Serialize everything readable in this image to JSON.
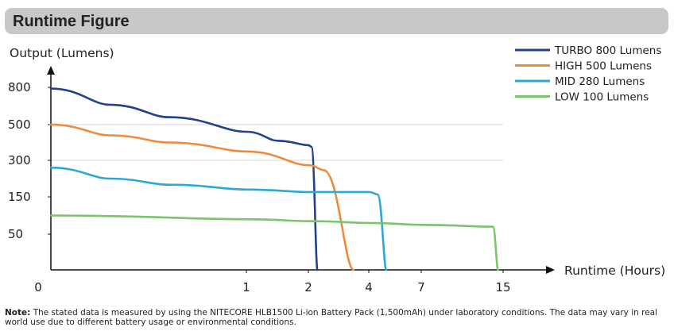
{
  "header": {
    "title": "Runtime Figure"
  },
  "note": {
    "label": "Note:",
    "text": "The stated data is measured by using the NITECORE HLB1500 Li-ion Battery Pack (1,500mAh) under laboratory conditions. The data may vary in real world use due to different battery usage or environmental conditions."
  },
  "chart_data": {
    "type": "line",
    "title": "Runtime Figure",
    "ylabel": "Output (Lumens)",
    "xlabel": "Runtime (Hours)",
    "y_ticks": [
      {
        "value": 800,
        "label": "800"
      },
      {
        "value": 500,
        "label": "500"
      },
      {
        "value": 300,
        "label": "300"
      },
      {
        "value": 150,
        "label": "150"
      },
      {
        "value": 50,
        "label": "50"
      }
    ],
    "x_ticks": [
      {
        "value": 0,
        "label": "0"
      },
      {
        "value": 1,
        "label": "1"
      },
      {
        "value": 2,
        "label": "2"
      },
      {
        "value": 4,
        "label": "4"
      },
      {
        "value": 7,
        "label": "7"
      },
      {
        "value": 15,
        "label": "15"
      }
    ],
    "x_scale": "nonlinear (tick labels not evenly spaced)",
    "gridlines_at": [
      500,
      300
    ],
    "legend_position": "top-right",
    "series": [
      {
        "name": "TURBO 800 Lumens",
        "color": "#23408e",
        "points": [
          [
            0,
            790
          ],
          [
            0.3,
            660
          ],
          [
            0.6,
            560
          ],
          [
            1,
            460
          ],
          [
            1.5,
            410
          ],
          [
            2,
            385
          ],
          [
            2.1,
            375
          ],
          [
            2.3,
            0
          ]
        ]
      },
      {
        "name": "HIGH 500 Lumens",
        "color": "#ef8a3c",
        "points": [
          [
            0,
            500
          ],
          [
            0.3,
            440
          ],
          [
            0.6,
            400
          ],
          [
            1,
            350
          ],
          [
            2,
            280
          ],
          [
            2.5,
            260
          ],
          [
            3.5,
            0
          ]
        ]
      },
      {
        "name": "MID 280 Lumens",
        "color": "#2ba8d5",
        "points": [
          [
            0,
            270
          ],
          [
            0.3,
            225
          ],
          [
            0.6,
            200
          ],
          [
            1,
            180
          ],
          [
            2,
            170
          ],
          [
            4,
            170
          ],
          [
            4.5,
            160
          ],
          [
            5,
            0
          ]
        ]
      },
      {
        "name": "LOW 100 Lumens",
        "color": "#7cc36e",
        "points": [
          [
            0,
            100
          ],
          [
            1,
            90
          ],
          [
            2,
            85
          ],
          [
            4,
            80
          ],
          [
            7,
            75
          ],
          [
            14,
            70
          ],
          [
            14.5,
            0
          ]
        ]
      }
    ]
  }
}
